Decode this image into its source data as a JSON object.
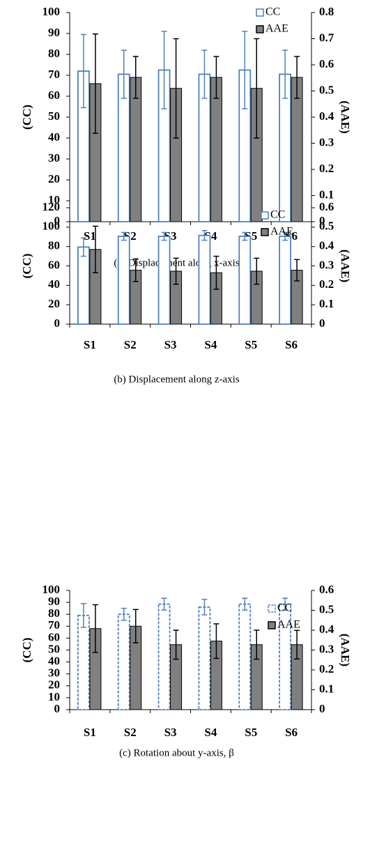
{
  "chart_data": [
    {
      "type": "bar",
      "caption": "(a) Displacement along x-axis",
      "ylabel": "(CC)",
      "y2label": "(AAE)",
      "categories": [
        "S1",
        "S2",
        "S3",
        "S4",
        "S5",
        "S6"
      ],
      "ylim": [
        0,
        100
      ],
      "yticks": [
        0,
        10,
        20,
        30,
        40,
        50,
        60,
        70,
        80,
        90,
        100
      ],
      "y2lim": [
        0,
        0.8
      ],
      "y2ticks": [
        0,
        0.1,
        0.2,
        0.3,
        0.4,
        0.5,
        0.6,
        0.7,
        0.8
      ],
      "series": [
        {
          "name": "CC",
          "color": "#4f81bd",
          "dashed": false,
          "values": [
            72,
            70.5,
            72.5,
            70.5,
            72.5,
            70.5
          ],
          "errors": [
            17.5,
            11.5,
            18.5,
            11.5,
            18.5,
            11.5
          ]
        },
        {
          "name": "AAE",
          "color": "#808080",
          "axis": "y2",
          "values": [
            0.528,
            0.552,
            0.51,
            0.552,
            0.51,
            0.552
          ],
          "errors": [
            0.19,
            0.08,
            0.19,
            0.08,
            0.19,
            0.08
          ]
        }
      ]
    },
    {
      "type": "bar",
      "caption": "(b) Displacement along  z-axis",
      "ylabel": "(CC)",
      "y2label": "(AAE)",
      "categories": [
        "S1",
        "S2",
        "S3",
        "S4",
        "S5",
        "S6"
      ],
      "ylim": [
        0,
        120
      ],
      "yticks": [
        0,
        20,
        40,
        60,
        80,
        100,
        120
      ],
      "y2lim": [
        0,
        0.6
      ],
      "y2ticks": [
        0,
        0.1,
        0.2,
        0.3,
        0.4,
        0.5,
        0.6
      ],
      "series": [
        {
          "name": "CC",
          "color": "#4f81bd",
          "dashed": false,
          "values": [
            79.5,
            90.5,
            90.5,
            91.5,
            90.5,
            90.5
          ],
          "errors": [
            9.5,
            4,
            4,
            5,
            4,
            4
          ]
        },
        {
          "name": "AAE",
          "color": "#808080",
          "axis": "y2",
          "values": [
            0.385,
            0.278,
            0.273,
            0.265,
            0.273,
            0.278
          ],
          "errors": [
            0.12,
            0.058,
            0.067,
            0.085,
            0.067,
            0.055
          ]
        }
      ]
    },
    {
      "type": "bar",
      "caption": "(c) Rotation about y-axis, β",
      "ylabel": "(CC)",
      "y2label": "(AAE)",
      "categories": [
        "S1",
        "S2",
        "S3",
        "S4",
        "S5",
        "S6"
      ],
      "ylim": [
        0,
        100
      ],
      "yticks": [
        0,
        10,
        20,
        30,
        40,
        50,
        60,
        70,
        80,
        90,
        100
      ],
      "y2lim": [
        0,
        0.6
      ],
      "y2ticks": [
        0,
        0.1,
        0.2,
        0.3,
        0.4,
        0.5,
        0.6
      ],
      "series": [
        {
          "name": "CC",
          "color": "#4f81bd",
          "dashed": true,
          "values": [
            79,
            80,
            88.5,
            86,
            88.5,
            88.5
          ],
          "errors": [
            10,
            5,
            5,
            6.5,
            5,
            5
          ]
        },
        {
          "name": "AAE",
          "color": "#808080",
          "axis": "y2",
          "values": [
            0.408,
            0.42,
            0.327,
            0.345,
            0.327,
            0.327
          ],
          "errors": [
            0.12,
            0.084,
            0.073,
            0.087,
            0.073,
            0.072
          ]
        }
      ]
    }
  ]
}
